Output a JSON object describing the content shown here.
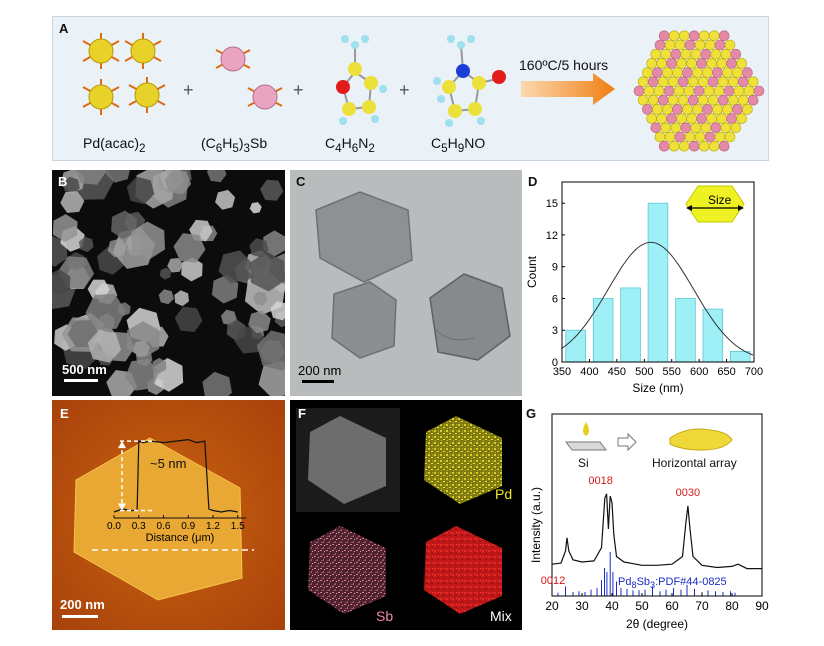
{
  "panelA": {
    "label": "A",
    "reagents": [
      "Pd(acac)",
      "(C",
      "H",
      ")",
      "Sb",
      "C",
      "H",
      "N",
      "C",
      "H",
      "NO"
    ],
    "pd_name": "Pd(acac)",
    "pd_sub": "2",
    "sb_name": [
      "(C",
      "6",
      "H",
      "5",
      ")",
      "3",
      "Sb"
    ],
    "c4_name": [
      "C",
      "4",
      "H",
      "6",
      "N",
      "2"
    ],
    "c5_name": [
      "C",
      "5",
      "H",
      "9",
      "NO"
    ],
    "condition": "160ºC/5 hours",
    "plus": "+"
  },
  "panelB": {
    "label": "B",
    "scale": "500 nm"
  },
  "panelC": {
    "label": "C",
    "scale": "200 nm"
  },
  "panelD": {
    "label": "D",
    "inset_label": "Size"
  },
  "panelE": {
    "label": "E",
    "scale": "200 nm",
    "annotation": "~5 nm"
  },
  "panelF": {
    "label": "F",
    "maps": [
      "Pd",
      "Sb",
      "Mix"
    ]
  },
  "panelG": {
    "label": "G",
    "substrate": "Si",
    "result": "Horizontal array",
    "reference": "Pd",
    "reference_sub": [
      "8",
      "3"
    ],
    "reference_tail": ":PDF#44-0825",
    "reference_mid": "Sb"
  },
  "chart_data": [
    {
      "id": "D",
      "type": "bar",
      "categories": [
        "375",
        "425",
        "475",
        "525",
        "575",
        "625",
        "675"
      ],
      "values": [
        3,
        6,
        7,
        15,
        6,
        5,
        1
      ],
      "fit": "gaussian",
      "fit_peak": 11.3,
      "fit_center": 512,
      "fit_sigma": 78,
      "xlabel": "Size (nm)",
      "ylabel": "Count",
      "xticks": [
        "350",
        "400",
        "450",
        "500",
        "550",
        "600",
        "650",
        "700"
      ],
      "yticks": [
        "0",
        "3",
        "6",
        "9",
        "12",
        "15"
      ],
      "xlim": [
        350,
        700
      ],
      "ylim": [
        0,
        17
      ],
      "bar_color": "#9ff0f6"
    },
    {
      "id": "E-inset",
      "type": "line",
      "x": [
        0.0,
        0.1,
        0.2,
        0.28,
        0.3,
        0.35,
        0.45,
        0.6,
        0.75,
        0.9,
        1.0,
        1.1,
        1.15,
        1.2,
        1.3,
        1.4,
        1.5
      ],
      "y": [
        0.4,
        0.6,
        0.5,
        0.5,
        5.1,
        5.0,
        5.1,
        5.0,
        5.1,
        5.2,
        5.0,
        5.1,
        0.6,
        0.5,
        0.4,
        0.5,
        0.4
      ],
      "xlabel": "Distance (μm)",
      "xticks": [
        "0.0",
        "0.3",
        "0.6",
        "0.9",
        "1.2",
        "1.5"
      ],
      "xlim": [
        0,
        1.6
      ],
      "ylim": [
        0,
        6.5
      ]
    },
    {
      "id": "G",
      "type": "line",
      "xlabel": "2θ (degree)",
      "ylabel": "Intensity (a.u.)",
      "xticks": [
        "20",
        "30",
        "40",
        "50",
        "60",
        "70",
        "80",
        "90"
      ],
      "xlim": [
        20,
        90
      ],
      "peaks": [
        {
          "label": "0012",
          "x": 25.0
        },
        {
          "label": "0018",
          "x": 38.2
        },
        {
          "label": "0030",
          "x": 65.3
        }
      ],
      "pattern_x": [
        20,
        23,
        24.5,
        25,
        25.6,
        27,
        30,
        34,
        36.5,
        37.6,
        38.2,
        38.8,
        39.4,
        40.0,
        40.6,
        41.5,
        44,
        50,
        55,
        60,
        63.5,
        64.6,
        65.3,
        66.0,
        67,
        70,
        75,
        80,
        82,
        85,
        90
      ],
      "pattern_y": [
        0.18,
        0.19,
        0.3,
        0.42,
        0.3,
        0.22,
        0.2,
        0.21,
        0.33,
        0.78,
        0.82,
        0.5,
        0.8,
        0.74,
        0.45,
        0.25,
        0.2,
        0.17,
        0.17,
        0.18,
        0.25,
        0.55,
        0.71,
        0.5,
        0.25,
        0.17,
        0.15,
        0.16,
        0.18,
        0.14,
        0.14
      ],
      "reference_lines_x": [
        22,
        24.5,
        27,
        29,
        31,
        33,
        35,
        36.5,
        37.5,
        38.3,
        39.4,
        40.3,
        41.5,
        43,
        45,
        47,
        49,
        51,
        53.5,
        56,
        58,
        60.5,
        63,
        65,
        67.5,
        70,
        72,
        74.5,
        77,
        79.5,
        81
      ],
      "reference_lines_h": [
        0.04,
        0.12,
        0.05,
        0.06,
        0.05,
        0.08,
        0.1,
        0.2,
        0.35,
        0.3,
        0.55,
        0.3,
        0.18,
        0.1,
        0.09,
        0.07,
        0.07,
        0.08,
        0.12,
        0.06,
        0.08,
        0.1,
        0.08,
        0.14,
        0.09,
        0.05,
        0.07,
        0.06,
        0.05,
        0.06,
        0.04
      ]
    }
  ]
}
